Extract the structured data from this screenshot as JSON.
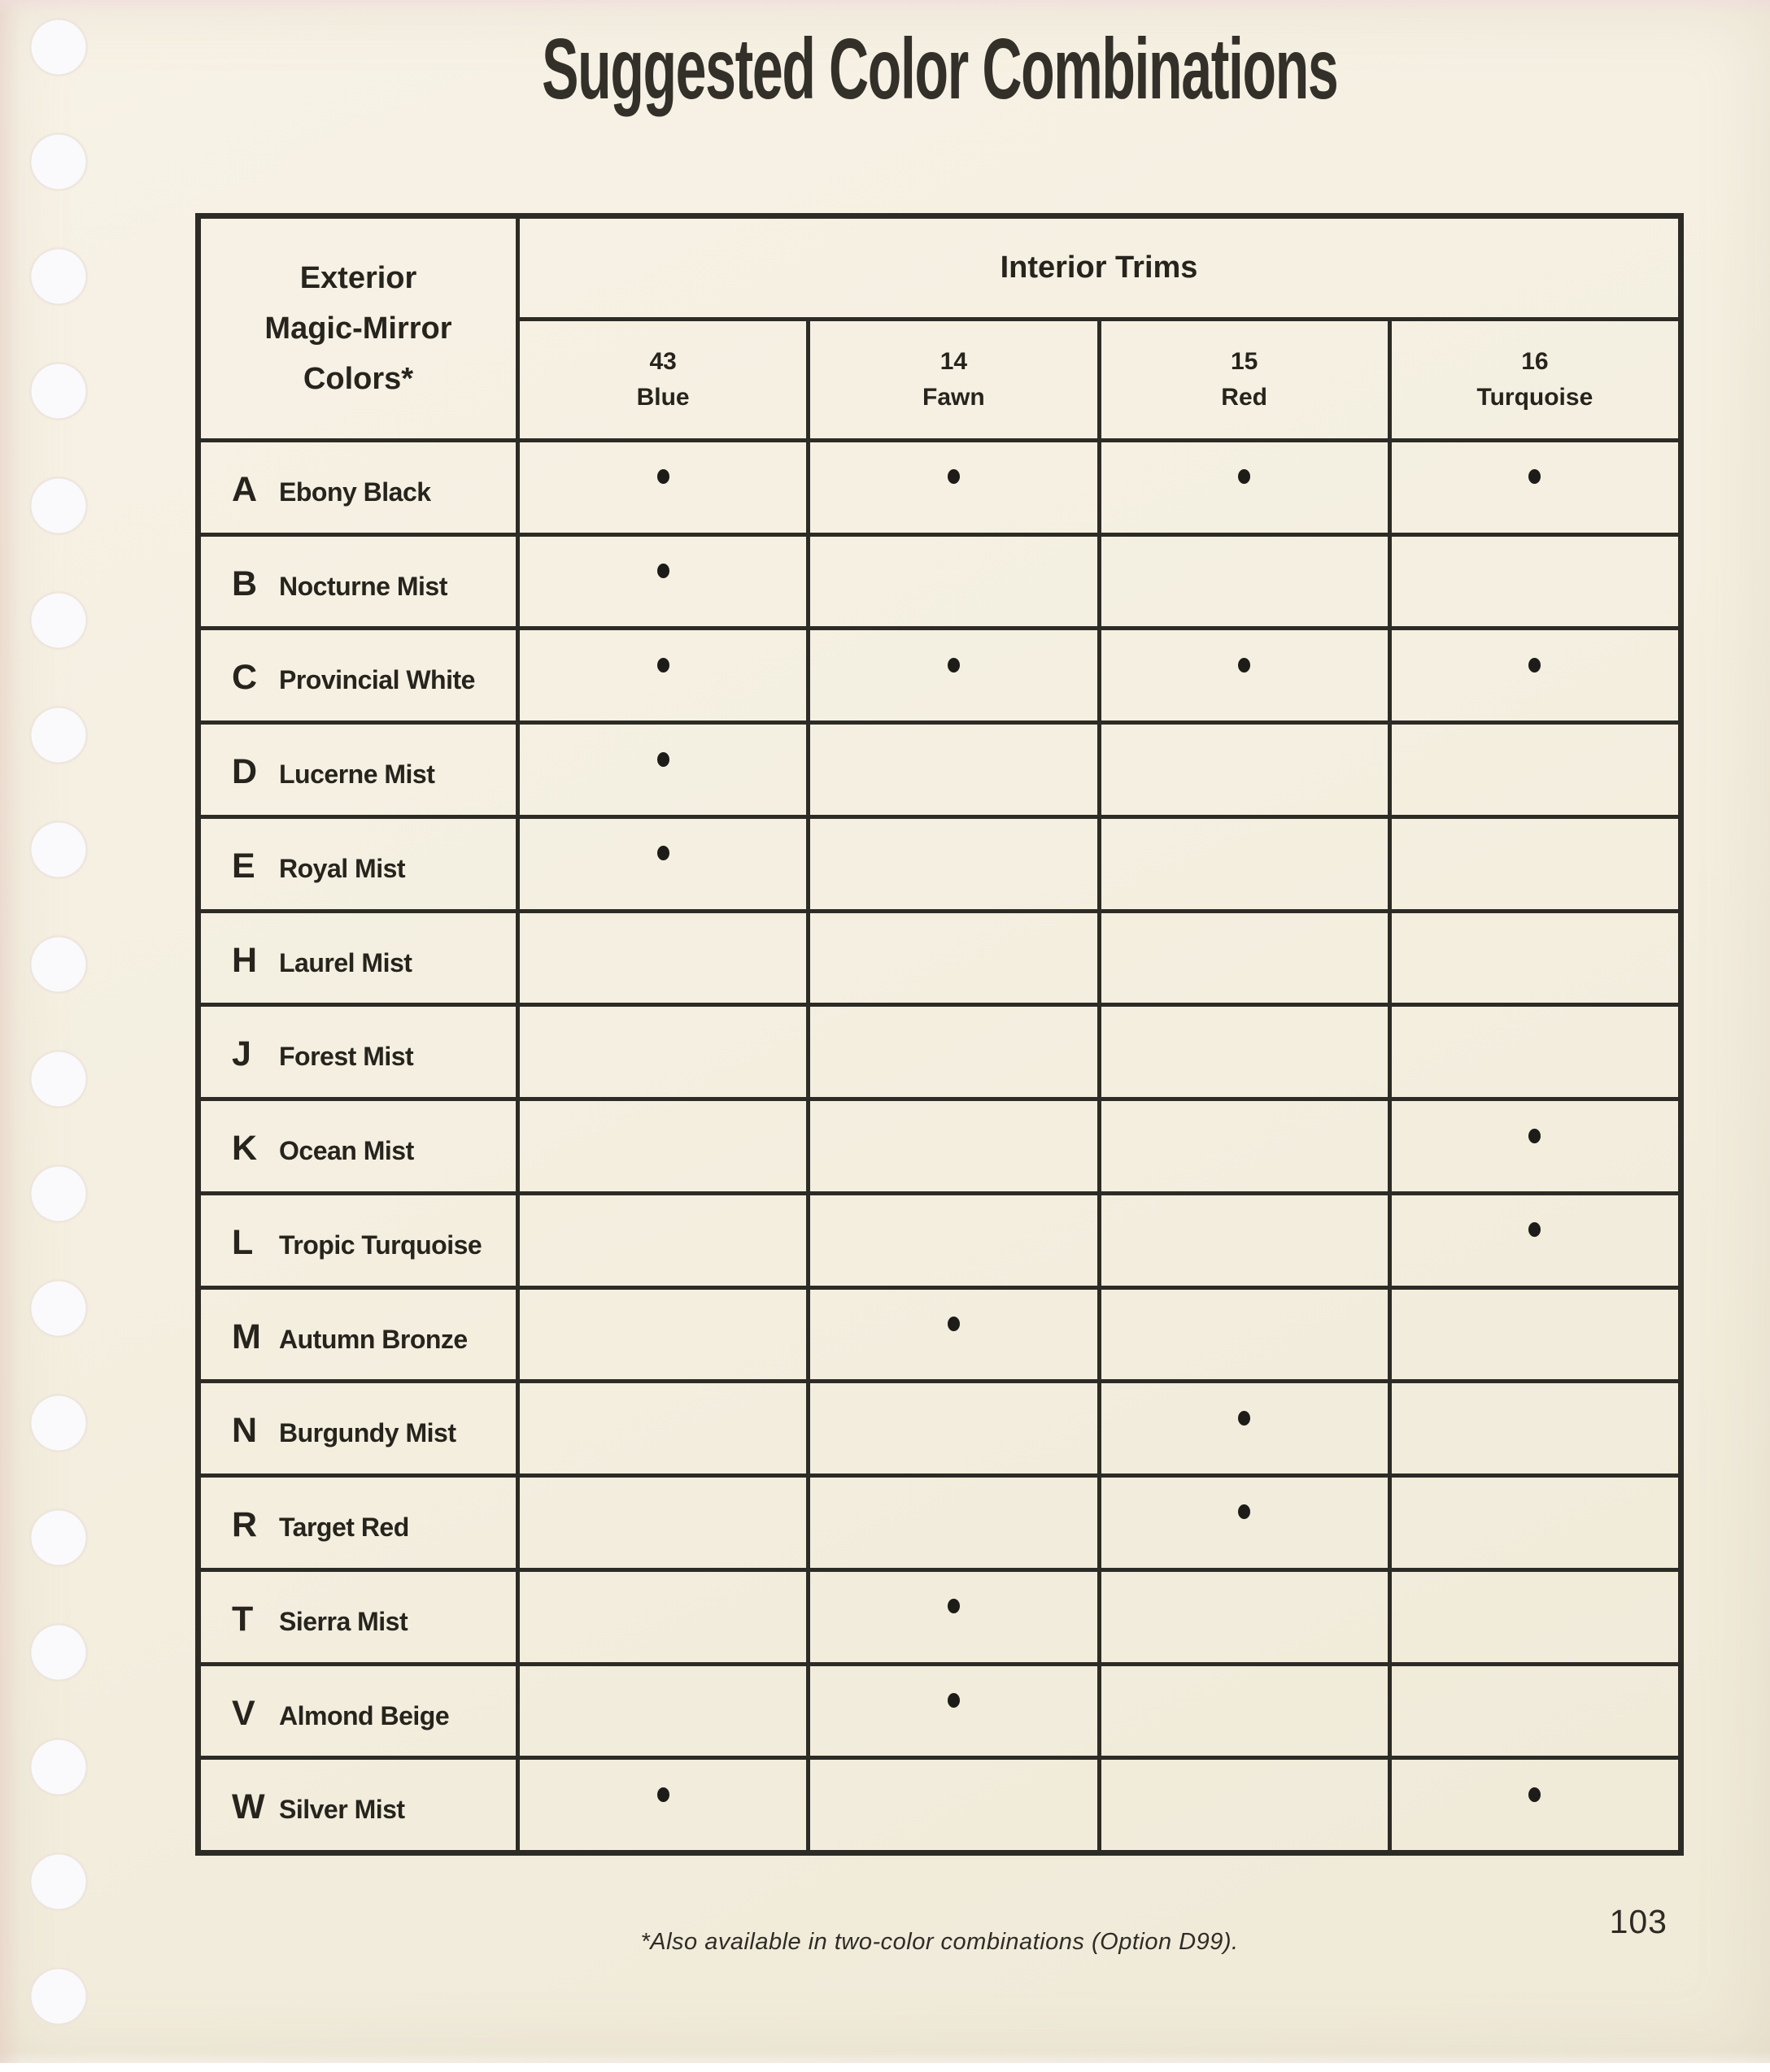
{
  "page": {
    "title": "Suggested Color Combinations",
    "footnote": "*Also available in two-color combinations (Option D99).",
    "page_number": "103"
  },
  "table": {
    "row_header_lines": [
      "Exterior",
      "Magic-Mirror",
      "Colors*"
    ],
    "col_group_header": "Interior Trims",
    "columns": [
      {
        "code": "43",
        "name": "Blue"
      },
      {
        "code": "14",
        "name": "Fawn"
      },
      {
        "code": "15",
        "name": "Red"
      },
      {
        "code": "16",
        "name": "Turquoise"
      }
    ],
    "rows": [
      {
        "code": "A",
        "name": "Ebony Black",
        "trims": [
          true,
          true,
          true,
          true
        ]
      },
      {
        "code": "B",
        "name": "Nocturne Mist",
        "trims": [
          true,
          false,
          false,
          false
        ]
      },
      {
        "code": "C",
        "name": "Provincial White",
        "trims": [
          true,
          true,
          true,
          true
        ]
      },
      {
        "code": "D",
        "name": "Lucerne Mist",
        "trims": [
          true,
          false,
          false,
          false
        ]
      },
      {
        "code": "E",
        "name": "Royal Mist",
        "trims": [
          true,
          false,
          false,
          false
        ]
      },
      {
        "code": "H",
        "name": "Laurel Mist",
        "trims": [
          false,
          false,
          false,
          false
        ]
      },
      {
        "code": "J",
        "name": "Forest Mist",
        "trims": [
          false,
          false,
          false,
          false
        ]
      },
      {
        "code": "K",
        "name": "Ocean Mist",
        "trims": [
          false,
          false,
          false,
          true
        ]
      },
      {
        "code": "L",
        "name": "Tropic Turquoise",
        "trims": [
          false,
          false,
          false,
          true
        ]
      },
      {
        "code": "M",
        "name": "Autumn Bronze",
        "trims": [
          false,
          true,
          false,
          false
        ]
      },
      {
        "code": "N",
        "name": "Burgundy Mist",
        "trims": [
          false,
          false,
          true,
          false
        ]
      },
      {
        "code": "R",
        "name": "Target Red",
        "trims": [
          false,
          false,
          true,
          false
        ]
      },
      {
        "code": "T",
        "name": "Sierra Mist",
        "trims": [
          false,
          true,
          false,
          false
        ]
      },
      {
        "code": "V",
        "name": "Almond Beige",
        "trims": [
          false,
          true,
          false,
          false
        ]
      },
      {
        "code": "W",
        "name": "Silver Mist",
        "trims": [
          true,
          false,
          false,
          true
        ]
      }
    ]
  },
  "colors": {
    "paper": "#f3eedf",
    "ink": "#2d2b25",
    "hole": "#fafafc"
  }
}
